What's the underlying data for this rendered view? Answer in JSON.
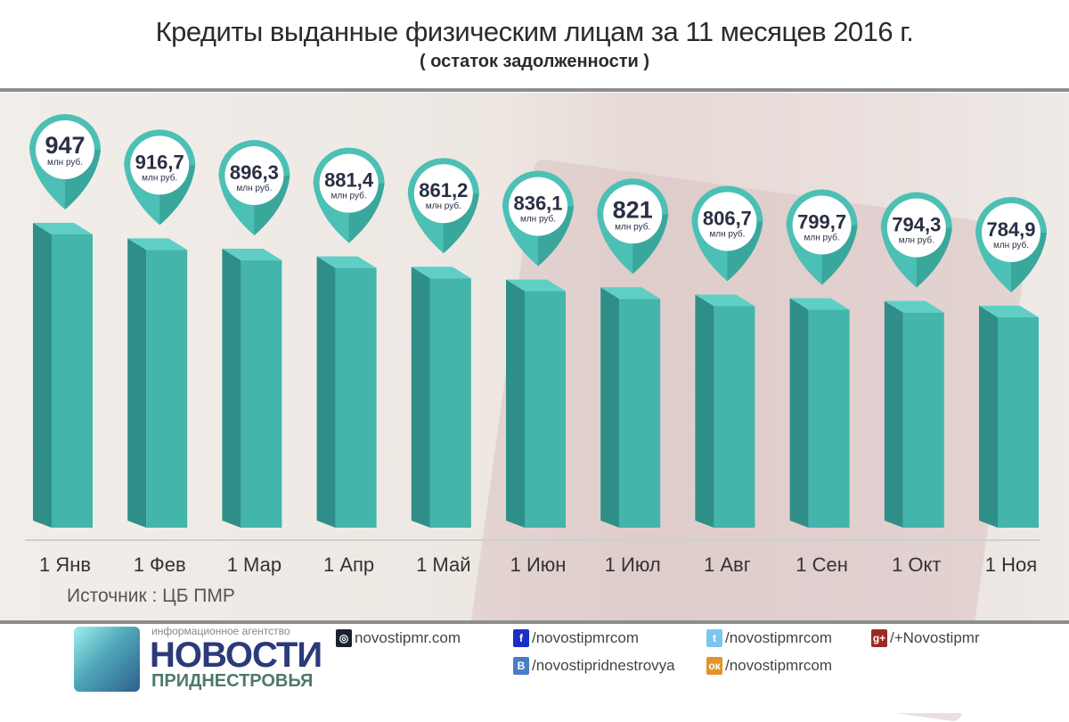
{
  "chart_data": {
    "type": "bar",
    "title": "Кредиты выданные физическим лицам за 11 месяцев 2016 г.",
    "subtitle": "( остаток задолженности )",
    "categories": [
      "1 Янв",
      "1 Фев",
      "1 Мар",
      "1 Апр",
      "1 Май",
      "1 Июн",
      "1 Июл",
      "1 Авг",
      "1 Сен",
      "1 Окт",
      "1 Ноя"
    ],
    "values": [
      947,
      916.7,
      896.3,
      881.4,
      861.2,
      836.1,
      821,
      806.7,
      799.7,
      794.3,
      784.9
    ],
    "value_labels": [
      "947",
      "916,7",
      "896,3",
      "881,4",
      "861,2",
      "836,1",
      "821",
      "806,7",
      "799,7",
      "794,3",
      "784,9"
    ],
    "unit": "млн руб.",
    "xlabel": "",
    "ylabel": "",
    "grid": false,
    "colors": {
      "bar_front": "#43b5ab",
      "bar_side": "#2f8f88",
      "bar_top": "#5fcfc6",
      "pin": "#4cc0b4",
      "pin_dark": "#3aa79c"
    }
  },
  "source": "Источник : ЦБ ПМР",
  "footer": {
    "logo_small": "информационное агентство",
    "logo_big": "НОВОСТИ",
    "logo_sub": "ПРИДНЕСТРОВЬЯ",
    "links": [
      {
        "icon": "globe-icon",
        "text": "novostipmr.com",
        "color": "#1b2030"
      },
      {
        "icon": "facebook-icon",
        "text": "/novostipmrcom",
        "color": "#1a2fc6"
      },
      {
        "icon": "twitter-icon",
        "text": "/novostipmrcom",
        "color": "#7cc6ee"
      },
      {
        "icon": "google-plus-icon",
        "text": "/+Novostipmr",
        "color": "#9b2a22"
      },
      {
        "icon": "vk-icon",
        "text": "/novostipridnestrovya",
        "color": "#4a7dc9"
      },
      {
        "icon": "odnoklassniki-icon",
        "text": "/novostipmrcom",
        "color": "#e0952a"
      }
    ]
  }
}
